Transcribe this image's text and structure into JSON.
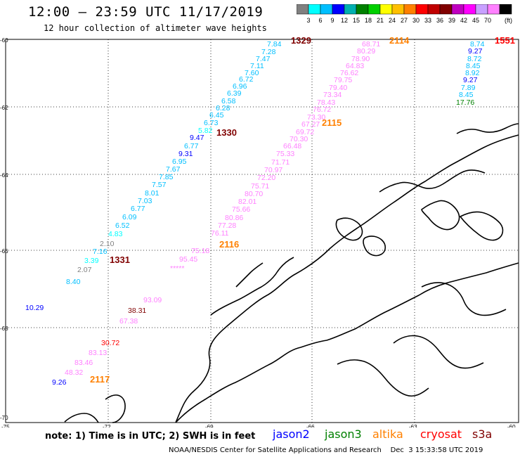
{
  "title": "12:00 – 23:59 UTC 11/17/2019",
  "subtitle": "12 hour collection of altimeter wave heights",
  "legend": {
    "colors": [
      "#808080",
      "#00ffff",
      "#00bfff",
      "#0000ff",
      "#00b0b0",
      "#008000",
      "#00d000",
      "#ffff00",
      "#ffc000",
      "#ff8000",
      "#ff0000",
      "#c00000",
      "#800000",
      "#c000c0",
      "#ff00ff",
      "#c8a0ff",
      "#ff80ff",
      "#000000"
    ],
    "ticks": [
      "3",
      "6",
      "9",
      "12",
      "15",
      "18",
      "21",
      "24",
      "27",
      "30",
      "33",
      "36",
      "39",
      "42",
      "45",
      "70"
    ],
    "unit": "(ft)"
  },
  "axes": {
    "lat_labels": [
      "-60",
      "-62",
      "-64",
      "-66",
      "-68",
      "-70"
    ],
    "lon_labels": [
      "-75",
      "-72",
      "-69",
      "-66",
      "-63",
      "-60"
    ]
  },
  "points": [
    {
      "v": "7.84",
      "c": "#00bfff"
    },
    {
      "v": "7.28",
      "c": "#00bfff"
    },
    {
      "v": "7.47",
      "c": "#00bfff"
    },
    {
      "v": "7.11",
      "c": "#00bfff"
    },
    {
      "v": "7.60",
      "c": "#00bfff"
    },
    {
      "v": "6.72",
      "c": "#00bfff"
    },
    {
      "v": "6.96",
      "c": "#00bfff"
    },
    {
      "v": "6.39",
      "c": "#00bfff"
    },
    {
      "v": "6.58",
      "c": "#00bfff"
    },
    {
      "v": "6.28",
      "c": "#00bfff"
    },
    {
      "v": "6.45",
      "c": "#00bfff"
    },
    {
      "v": "6.73",
      "c": "#00bfff"
    },
    {
      "v": "5.82",
      "c": "#00ffff"
    },
    {
      "v": "9.47",
      "c": "#0000ff"
    },
    {
      "v": "6.77",
      "c": "#00bfff"
    },
    {
      "v": "9.31",
      "c": "#0000ff"
    },
    {
      "v": "6.95",
      "c": "#00bfff"
    },
    {
      "v": "7.67",
      "c": "#00bfff"
    },
    {
      "v": "7.85",
      "c": "#00bfff"
    },
    {
      "v": "7.57",
      "c": "#00bfff"
    },
    {
      "v": "8.01",
      "c": "#00bfff"
    },
    {
      "v": "7.03",
      "c": "#00bfff"
    },
    {
      "v": "6.77",
      "c": "#00bfff"
    },
    {
      "v": "6.09",
      "c": "#00bfff"
    },
    {
      "v": "6.52",
      "c": "#00bfff"
    },
    {
      "v": "4.83",
      "c": "#00ffff"
    },
    {
      "v": "2.10",
      "c": "#808080"
    },
    {
      "v": "7.16",
      "c": "#00bfff"
    },
    {
      "v": "3.39",
      "c": "#00ffff"
    },
    {
      "v": "2.07",
      "c": "#808080"
    },
    {
      "v": "8.40",
      "c": "#00bfff"
    },
    {
      "v": "68.71",
      "c": "#ff80ff"
    },
    {
      "v": "80.29",
      "c": "#ff80ff"
    },
    {
      "v": "78.90",
      "c": "#ff80ff"
    },
    {
      "v": "64.83",
      "c": "#ff80ff"
    },
    {
      "v": "76.62",
      "c": "#ff80ff"
    },
    {
      "v": "79.75",
      "c": "#ff80ff"
    },
    {
      "v": "79.40",
      "c": "#ff80ff"
    },
    {
      "v": "73.34",
      "c": "#ff80ff"
    },
    {
      "v": "78.43",
      "c": "#ff80ff"
    },
    {
      "v": "76.72",
      "c": "#ff80ff"
    },
    {
      "v": "73.30",
      "c": "#ff80ff"
    },
    {
      "v": "67.27",
      "c": "#ff80ff"
    },
    {
      "v": "69.72",
      "c": "#ff80ff"
    },
    {
      "v": "70.30",
      "c": "#ff80ff"
    },
    {
      "v": "66.48",
      "c": "#ff80ff"
    },
    {
      "v": "75.33",
      "c": "#ff80ff"
    },
    {
      "v": "71.71",
      "c": "#ff80ff"
    },
    {
      "v": "70.97",
      "c": "#ff80ff"
    },
    {
      "v": "72.20",
      "c": "#ff80ff"
    },
    {
      "v": "75.71",
      "c": "#ff80ff"
    },
    {
      "v": "80.70",
      "c": "#ff80ff"
    },
    {
      "v": "82.01",
      "c": "#ff80ff"
    },
    {
      "v": "75.66",
      "c": "#ff80ff"
    },
    {
      "v": "80.86",
      "c": "#ff80ff"
    },
    {
      "v": "77.28",
      "c": "#ff80ff"
    },
    {
      "v": "76.11",
      "c": "#ff80ff"
    },
    {
      "v": "75.18",
      "c": "#ff80ff"
    },
    {
      "v": "95.45",
      "c": "#ff80ff"
    },
    {
      "v": "*****",
      "c": "#ff80ff"
    },
    {
      "v": "93.09",
      "c": "#ff80ff"
    },
    {
      "v": "38.31",
      "c": "#800000"
    },
    {
      "v": "67.38",
      "c": "#ff80ff"
    },
    {
      "v": "30.72",
      "c": "#ff0000"
    },
    {
      "v": "83.13",
      "c": "#ff80ff"
    },
    {
      "v": "83.46",
      "c": "#ff80ff"
    },
    {
      "v": "48.32",
      "c": "#ff80ff"
    },
    {
      "v": "9.26",
      "c": "#0000ff"
    },
    {
      "v": "8.74",
      "c": "#00bfff"
    },
    {
      "v": "9.27",
      "c": "#0000ff"
    },
    {
      "v": "8.72",
      "c": "#00bfff"
    },
    {
      "v": "8.45",
      "c": "#00bfff"
    },
    {
      "v": "8.92",
      "c": "#00bfff"
    },
    {
      "v": "9.27",
      "c": "#0000ff"
    },
    {
      "v": "7.89",
      "c": "#00bfff"
    },
    {
      "v": "8.45",
      "c": "#00bfff"
    },
    {
      "v": "17.76",
      "c": "#008000"
    },
    {
      "v": "10.29",
      "c": "#0000ff"
    }
  ],
  "passes": [
    {
      "v": "1329",
      "c": "#800000"
    },
    {
      "v": "2114",
      "c": "#ff8000"
    },
    {
      "v": "1551",
      "c": "#ff0000"
    },
    {
      "v": "1330",
      "c": "#800000"
    },
    {
      "v": "2115",
      "c": "#ff8000"
    },
    {
      "v": "2116",
      "c": "#ff8000"
    },
    {
      "v": "1331",
      "c": "#800000"
    },
    {
      "v": "2117",
      "c": "#ff8000"
    }
  ],
  "note": "note: 1) Time is in UTC; 2) SWH is in feet",
  "satellites": [
    {
      "name": "jason2",
      "c": "#0000ff"
    },
    {
      "name": "jason3",
      "c": "#008000"
    },
    {
      "name": "altika",
      "c": "#ff8000"
    },
    {
      "name": "cryosat",
      "c": "#ff0000"
    },
    {
      "name": "s3a",
      "c": "#800000"
    }
  ],
  "footer": "NOAA/NESDIS Center for Satellite Applications and Research    Dec  3 15:33:58 UTC 2019"
}
